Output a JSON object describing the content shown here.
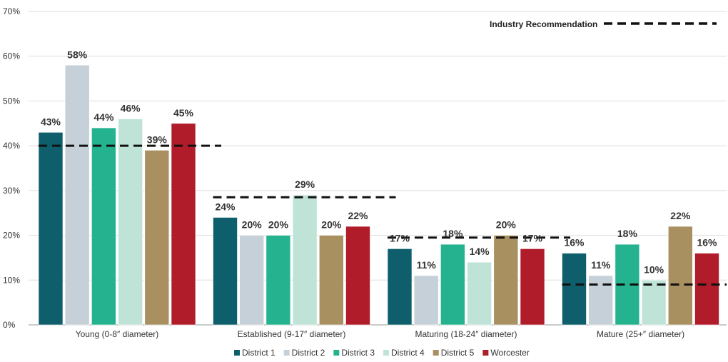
{
  "chart_data": {
    "type": "bar",
    "title": "",
    "xlabel": "",
    "ylabel": "",
    "ylim": [
      0,
      70
    ],
    "yticks": [
      0,
      10,
      20,
      30,
      40,
      50,
      60,
      70
    ],
    "ytick_labels": [
      "0%",
      "10%",
      "20%",
      "30%",
      "40%",
      "50%",
      "60%",
      "70%"
    ],
    "grid": true,
    "legend_placement": "bottom",
    "categories": [
      "Young (0-8″ diameter)",
      "Established (9-17″ diameter)",
      "Maturing (18-24″ diameter)",
      "Mature (25+″ diameter)"
    ],
    "series": [
      {
        "name": "District 1",
        "color": "#0e5e6c",
        "values": [
          43,
          24,
          17,
          16
        ],
        "labels": [
          "43%",
          "24%",
          "17%",
          "16%"
        ]
      },
      {
        "name": "District 2",
        "color": "#c5d0d9",
        "values": [
          58,
          20,
          11,
          11
        ],
        "labels": [
          "58%",
          "20%",
          "11%",
          "11%"
        ]
      },
      {
        "name": "District 3",
        "color": "#25b38f",
        "values": [
          44,
          20,
          18,
          18
        ],
        "labels": [
          "44%",
          "20%",
          "18%",
          "18%"
        ]
      },
      {
        "name": "District 4",
        "color": "#bfe4d7",
        "values": [
          46,
          29,
          14,
          10
        ],
        "labels": [
          "46%",
          "29%",
          "14%",
          "10%"
        ]
      },
      {
        "name": "District 5",
        "color": "#a89060",
        "values": [
          39,
          20,
          20,
          22
        ],
        "labels": [
          "39%",
          "20%",
          "20%",
          "22%"
        ]
      },
      {
        "name": "Worcester",
        "color": "#b01c2a",
        "values": [
          45,
          22,
          17,
          16
        ],
        "labels": [
          "45%",
          "22%",
          "17%",
          "16%"
        ]
      }
    ],
    "reference": {
      "name": "Industry Recommendation",
      "style": "dashed",
      "color": "#111111",
      "values": [
        40,
        28.5,
        19.5,
        9
      ]
    }
  }
}
